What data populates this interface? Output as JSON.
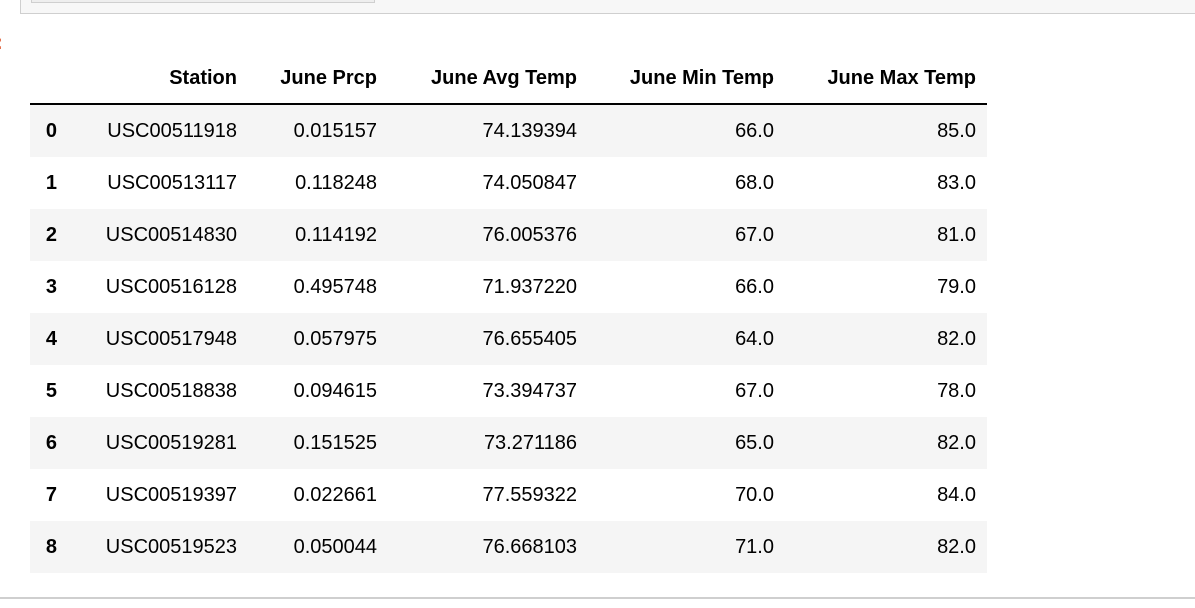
{
  "prompt": ":",
  "table": {
    "columns": [
      "Station",
      "June Prcp",
      "June Avg Temp",
      "June Min Temp",
      "June Max Temp"
    ],
    "rows": [
      [
        "0",
        "USC00511918",
        "0.015157",
        "74.139394",
        "66.0",
        "85.0"
      ],
      [
        "1",
        "USC00513117",
        "0.118248",
        "74.050847",
        "68.0",
        "83.0"
      ],
      [
        "2",
        "USC00514830",
        "0.114192",
        "76.005376",
        "67.0",
        "81.0"
      ],
      [
        "3",
        "USC00516128",
        "0.495748",
        "71.937220",
        "66.0",
        "79.0"
      ],
      [
        "4",
        "USC00517948",
        "0.057975",
        "76.655405",
        "64.0",
        "82.0"
      ],
      [
        "5",
        "USC00518838",
        "0.094615",
        "73.394737",
        "67.0",
        "78.0"
      ],
      [
        "6",
        "USC00519281",
        "0.151525",
        "73.271186",
        "65.0",
        "82.0"
      ],
      [
        "7",
        "USC00519397",
        "0.022661",
        "77.559322",
        "70.0",
        "84.0"
      ],
      [
        "8",
        "USC00519523",
        "0.050044",
        "76.668103",
        "71.0",
        "82.0"
      ]
    ]
  }
}
